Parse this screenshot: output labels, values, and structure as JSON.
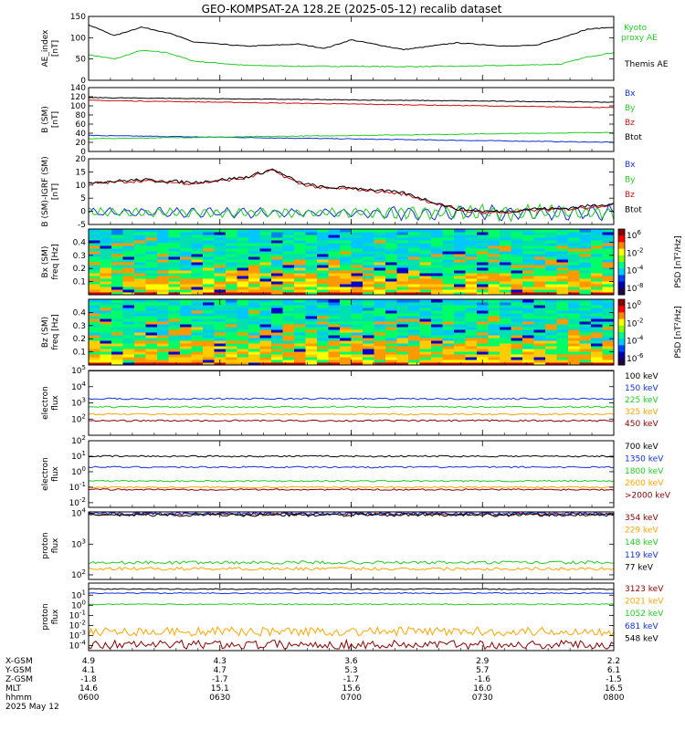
{
  "title": "GEO-KOMPSAT-2A 128.2E (2025-05-12) recalib dataset",
  "ephemeris": {
    "row_labels": [
      "X-GSM",
      "Y-GSM",
      "Z-GSM",
      "MLT",
      "hhmm",
      "2025 May 12"
    ],
    "columns": [
      {
        "x": "4.9",
        "y": "4.1",
        "z": "-1.8",
        "mlt": "14.6",
        "hhmm": "0600"
      },
      {
        "x": "4.3",
        "y": "4.7",
        "z": "-1.7",
        "mlt": "15.1",
        "hhmm": "0630"
      },
      {
        "x": "3.6",
        "y": "5.3",
        "z": "-1.7",
        "mlt": "15.6",
        "hhmm": "0700"
      },
      {
        "x": "2.9",
        "y": "5.7",
        "z": "-1.6",
        "mlt": "16.0",
        "hhmm": "0730"
      },
      {
        "x": "2.2",
        "y": "6.1",
        "z": "-1.5",
        "mlt": "16.5",
        "hhmm": "0800"
      }
    ]
  },
  "colors": {
    "black": "#000000",
    "blue": "#1030d8",
    "green": "#22cc22",
    "red": "#cc1010",
    "orange": "#ffa500",
    "darkred": "#8b0000",
    "kyoto": "#22cc22"
  },
  "chart_data": [
    {
      "type": "line",
      "panel": "ae",
      "ylabel_lines": [
        "AE_index",
        "[nT]"
      ],
      "ylim": [
        0,
        150
      ],
      "yticks": [
        "0",
        "50",
        "100",
        "150"
      ],
      "ytick_values": [
        0,
        50,
        100,
        150
      ],
      "x": [
        "0600",
        "0630",
        "0700",
        "0730",
        "0800"
      ],
      "series": [
        {
          "name": "Kyoto",
          "name2": "proxy AE",
          "color": "#22cc22",
          "t": [
            0,
            0.05,
            0.1,
            0.15,
            0.2,
            0.3,
            0.4,
            0.5,
            0.6,
            0.7,
            0.8,
            0.9,
            0.95,
            1.0
          ],
          "v": [
            60,
            50,
            70,
            65,
            45,
            35,
            33,
            33,
            32,
            33,
            35,
            38,
            55,
            65
          ]
        },
        {
          "name": "Themis AE",
          "color": "#000000",
          "t": [
            0,
            0.05,
            0.1,
            0.15,
            0.2,
            0.3,
            0.4,
            0.45,
            0.5,
            0.6,
            0.7,
            0.8,
            0.85,
            0.9,
            0.95,
            1.0
          ],
          "v": [
            130,
            105,
            125,
            112,
            90,
            80,
            85,
            75,
            95,
            72,
            88,
            80,
            82,
            100,
            120,
            125
          ]
        }
      ]
    },
    {
      "type": "line",
      "panel": "bsm",
      "ylabel_lines": [
        "B (SM)",
        "[nT]"
      ],
      "ylim": [
        0,
        140
      ],
      "yticks": [
        "0",
        "20",
        "40",
        "60",
        "80",
        "100",
        "120",
        "140"
      ],
      "ytick_values": [
        0,
        20,
        40,
        60,
        80,
        100,
        120,
        140
      ],
      "series": [
        {
          "name": "Bx",
          "color": "#1030d8",
          "v0": 35,
          "v1": 20
        },
        {
          "name": "By",
          "color": "#22cc22",
          "v0": 28,
          "v1": 42
        },
        {
          "name": "Bz",
          "color": "#cc1010",
          "v0": 112,
          "v1": 96
        },
        {
          "name": "Btot",
          "color": "#000000",
          "v0": 118,
          "v1": 108
        }
      ]
    },
    {
      "type": "line",
      "panel": "bsm_igrf",
      "ylabel_lines": [
        "B (SM)-IGRF (SM)",
        "[nT]"
      ],
      "ylim": [
        -5,
        20
      ],
      "yticks": [
        "-5",
        "0",
        "5",
        "10",
        "15",
        "20"
      ],
      "ytick_values": [
        -5,
        0,
        5,
        10,
        15,
        20
      ],
      "series": [
        {
          "name": "Bx",
          "color": "#1030d8"
        },
        {
          "name": "By",
          "color": "#22cc22"
        },
        {
          "name": "Bz",
          "color": "#cc1010"
        },
        {
          "name": "Btot",
          "color": "#000000",
          "t": [
            0,
            0.1,
            0.2,
            0.3,
            0.35,
            0.4,
            0.45,
            0.5,
            0.55,
            0.6,
            0.65,
            0.7,
            0.75,
            0.8,
            0.85,
            0.9,
            1.0
          ],
          "v": [
            11,
            12,
            11,
            13,
            16,
            11,
            9,
            9,
            8,
            7,
            4,
            1,
            0,
            0,
            1,
            1,
            3
          ]
        }
      ]
    },
    {
      "type": "heatmap",
      "panel": "bx_spec",
      "ylabel_lines": [
        "Bx (SM)",
        "freq [Hz]"
      ],
      "ylim": [
        0,
        0.5
      ],
      "yticks": [
        "0.1",
        "0.2",
        "0.3",
        "0.4"
      ],
      "ytick_values": [
        0.1,
        0.2,
        0.3,
        0.4
      ],
      "colorbar": {
        "label": "PSD [nT²/Hz]",
        "ticks": [
          "10^6",
          "10^-2",
          "10^-4",
          "10^-8"
        ]
      }
    },
    {
      "type": "heatmap",
      "panel": "bz_spec",
      "ylabel_lines": [
        "Bz (SM)",
        "freq [Hz]"
      ],
      "ylim": [
        0,
        0.5
      ],
      "yticks": [
        "0.1",
        "0.2",
        "0.3",
        "0.4"
      ],
      "ytick_values": [
        0.1,
        0.2,
        0.3,
        0.4
      ],
      "colorbar": {
        "label": "PSD [nT²/Hz]",
        "ticks": [
          "10^0",
          "10^-2",
          "10^-4",
          "10^-6"
        ]
      }
    },
    {
      "type": "line",
      "panel": "electron_low",
      "ylabel_lines": [
        "electron",
        "flux"
      ],
      "ylim_log": [
        1,
        5
      ],
      "yticks": [
        "10^2",
        "10^3",
        "10^4",
        "10^5"
      ],
      "ytick_values": [
        2,
        3,
        4,
        5
      ],
      "series": [
        {
          "name": "100 keV",
          "color": "#000000",
          "v": 5.3
        },
        {
          "name": "150 keV",
          "color": "#1030d8",
          "v": 3.25
        },
        {
          "name": "225 keV",
          "color": "#22cc22",
          "v": 2.75
        },
        {
          "name": "325 keV",
          "color": "#ffa500",
          "v": 2.3
        },
        {
          "name": "450 keV",
          "color": "#8b0000",
          "v": 1.9
        }
      ]
    },
    {
      "type": "line",
      "panel": "electron_high",
      "ylabel_lines": [
        "electron",
        "flux"
      ],
      "ylim_log": [
        -2.3,
        2
      ],
      "yticks": [
        "10^-2",
        "10^-1",
        "10^0",
        "10^1",
        "10^2"
      ],
      "ytick_values": [
        -2,
        -1,
        0,
        1,
        2
      ],
      "series": [
        {
          "name": "700 keV",
          "color": "#000000",
          "v": 1.0
        },
        {
          "name": "1350 keV",
          "color": "#1030d8",
          "v": 0.3
        },
        {
          "name": "1800 keV",
          "color": "#22cc22",
          "v": -0.6
        },
        {
          "name": "2600 keV",
          "color": "#ffa500",
          "v": -1.0
        },
        {
          "name": ">2000 keV",
          "color": "#8b0000",
          "v": -1.15
        }
      ]
    },
    {
      "type": "line",
      "panel": "proton_low",
      "ylabel_lines": [
        "proton",
        "flux"
      ],
      "ylim_log": [
        1.85,
        4.05
      ],
      "yticks": [
        "10^2",
        "10^3",
        "10^4"
      ],
      "ytick_values": [
        2,
        3,
        4
      ],
      "series": [
        {
          "name": "354 keV",
          "color": "#8b0000",
          "v": 3.98
        },
        {
          "name": "229 keV",
          "color": "#ffa500",
          "v": 2.2
        },
        {
          "name": "148 keV",
          "color": "#22cc22",
          "v": 2.4
        },
        {
          "name": "119 keV",
          "color": "#1030d8",
          "v": 4.0
        },
        {
          "name": "77 keV",
          "color": "#000000",
          "v": 3.95
        }
      ]
    },
    {
      "type": "line",
      "panel": "proton_high",
      "ylabel_lines": [
        "proton",
        "flux"
      ],
      "ylim_log": [
        -4.5,
        2.2
      ],
      "yticks": [
        "10^-4",
        "10^-3",
        "10^-2",
        "10^-1",
        "10^0",
        "10^1"
      ],
      "ytick_values": [
        -4,
        -3,
        -2,
        -1,
        0,
        1
      ],
      "series": [
        {
          "name": "3123 keV",
          "color": "#8b0000",
          "v": -3.9
        },
        {
          "name": "2021 keV",
          "color": "#ffa500",
          "v": -2.6
        },
        {
          "name": "1052 keV",
          "color": "#22cc22",
          "v": 0.1
        },
        {
          "name": "681 keV",
          "color": "#1030d8",
          "v": 1.2
        },
        {
          "name": "548 keV",
          "color": "#000000",
          "v": 1.6
        }
      ]
    }
  ]
}
